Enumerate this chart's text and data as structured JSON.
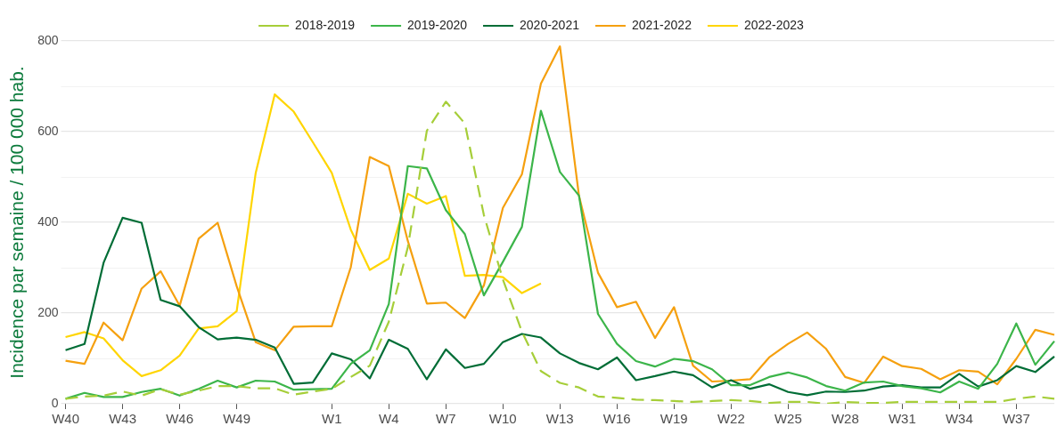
{
  "chart_data": {
    "type": "line",
    "ylabel": "Incidence par semaine / 100 000 hab.",
    "categories": [
      "W40",
      null,
      null,
      "W43",
      null,
      null,
      "W46",
      null,
      null,
      "W49",
      null,
      null,
      null,
      null,
      "W1",
      null,
      null,
      "W4",
      null,
      null,
      "W7",
      null,
      null,
      "W10",
      null,
      null,
      "W13",
      null,
      null,
      "W16",
      null,
      null,
      "W19",
      null,
      null,
      "W22",
      null,
      null,
      "W25",
      null,
      null,
      "W28",
      null,
      null,
      "W31",
      null,
      null,
      "W34",
      null,
      null,
      "W37",
      null,
      null
    ],
    "ylim": [
      0,
      800
    ],
    "yticks": [
      0,
      {
        "value": 100,
        "label": null
      },
      200,
      {
        "value": 300,
        "label": null
      },
      400,
      {
        "value": 500,
        "label": null
      },
      600,
      {
        "value": 700,
        "label": null
      },
      800
    ],
    "grid": "y",
    "legend": "top",
    "marker": "none",
    "series": [
      {
        "name": "2018-2019",
        "color": "#a6ce39",
        "line_style": "dashed",
        "values": [
          11,
          16,
          18,
          27,
          18,
          32,
          20,
          29,
          39,
          39,
          34,
          34,
          20,
          27,
          33,
          59,
          84,
          181,
          345,
          602,
          666,
          618,
          416,
          274,
          159,
          72,
          46,
          36,
          16,
          13,
          9,
          8,
          6,
          4,
          6,
          8,
          6,
          2,
          4,
          4,
          0,
          4,
          2,
          2,
          4,
          4,
          4,
          4,
          4,
          4,
          11,
          16,
          11
        ]
      },
      {
        "name": "2019-2020",
        "color": "#3cb54a",
        "values": [
          11,
          24,
          15,
          15,
          26,
          33,
          18,
          33,
          51,
          36,
          51,
          49,
          31,
          32,
          33,
          88,
          118,
          220,
          524,
          519,
          427,
          374,
          239,
          313,
          390,
          646,
          511,
          459,
          198,
          132,
          94,
          82,
          99,
          94,
          76,
          41,
          41,
          59,
          69,
          58,
          39,
          29,
          47,
          49,
          39,
          34,
          25,
          49,
          33,
          88,
          177,
          86,
          138
        ]
      },
      {
        "name": "2020-2021",
        "color": "#006d36",
        "values": [
          118,
          132,
          311,
          410,
          399,
          229,
          215,
          169,
          142,
          146,
          141,
          124,
          44,
          47,
          111,
          98,
          56,
          141,
          121,
          54,
          120,
          79,
          88,
          136,
          154,
          146,
          111,
          90,
          76,
          102,
          52,
          61,
          71,
          63,
          36,
          52,
          33,
          43,
          26,
          19,
          27,
          26,
          29,
          38,
          41,
          36,
          36,
          66,
          38,
          52,
          83,
          70,
          104
        ]
      },
      {
        "name": "2021-2022",
        "color": "#f5a00f",
        "values": [
          95,
          88,
          179,
          140,
          254,
          292,
          216,
          364,
          399,
          259,
          136,
          118,
          170,
          171,
          171,
          301,
          544,
          524,
          359,
          221,
          223,
          189,
          261,
          432,
          506,
          706,
          788,
          459,
          289,
          213,
          225,
          145,
          213,
          84,
          49,
          51,
          54,
          102,
          132,
          157,
          121,
          59,
          46,
          104,
          83,
          77,
          54,
          74,
          71,
          43,
          99,
          163,
          152
        ]
      },
      {
        "name": "2022-2023",
        "color": "#ffd500",
        "values": [
          147,
          158,
          144,
          96,
          61,
          74,
          106,
          166,
          171,
          204,
          509,
          682,
          644,
          577,
          509,
          384,
          295,
          320,
          463,
          441,
          458,
          282,
          284,
          279,
          244,
          265,
          null,
          null,
          null,
          null,
          null,
          null,
          null,
          null,
          null,
          null,
          null,
          null,
          null,
          null,
          null,
          null,
          null,
          null,
          null,
          null,
          null,
          null,
          null,
          null,
          null,
          null,
          null
        ]
      }
    ]
  }
}
